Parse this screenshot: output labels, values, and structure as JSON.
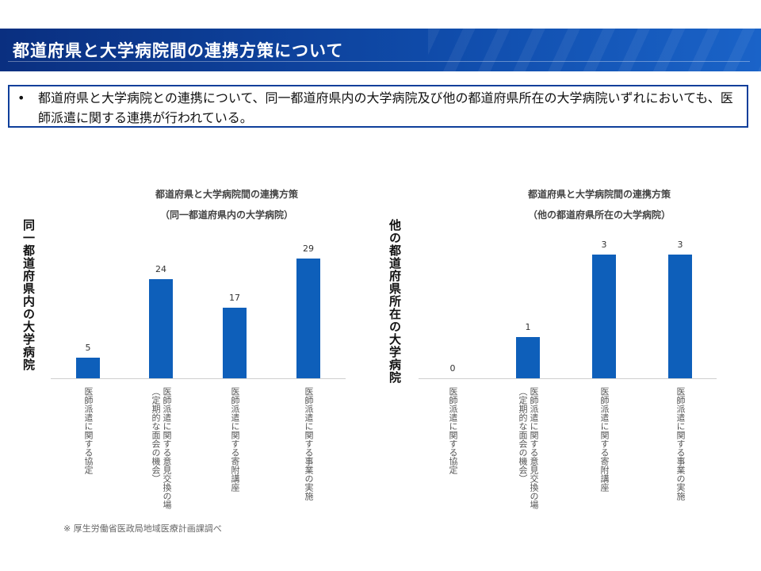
{
  "header": {
    "title": "都道府県と大学病院間の連携方策について"
  },
  "summary": {
    "bullet": "•",
    "text": "都道府県と大学病院との連携について、同一都道府県内の大学病院及び他の都道府県所在の大学病院いずれにおいても、医師派遣に関する連携が行われている。"
  },
  "chart_data": [
    {
      "type": "bar",
      "title": "都道府県と大学病院間の連携方策",
      "subtitle": "（同一都道府県内の大学病院）",
      "ylabel": "同一都道府県内の大学病院",
      "categories": [
        "医師派遣に関する協定",
        "医師派遣に関する意見交換の場（定期的な面会の機会）",
        "医師派遣に関する寄附講座",
        "医師派遣に関する事業の実施"
      ],
      "category_lines": [
        [
          "医師派遣に関する協定"
        ],
        [
          "医師派遣に関する意見交換の場",
          "（定期的な面会の機会）"
        ],
        [
          "医師派遣に関する寄附講座"
        ],
        [
          "医師派遣に関する事業の実施"
        ]
      ],
      "values": [
        5,
        24,
        17,
        29
      ],
      "ylim": [
        0,
        29
      ],
      "grid": false,
      "color": "#0e5fba"
    },
    {
      "type": "bar",
      "title": "都道府県と大学病院間の連携方策",
      "subtitle": "（他の都道府県所在の大学病院）",
      "ylabel": "他の都道府県所在の大学病院",
      "categories": [
        "医師派遣に関する協定",
        "医師派遣に関する意見交換の場（定期的な面会の機会）",
        "医師派遣に関する寄附講座",
        "医師派遣に関する事業の実施"
      ],
      "category_lines": [
        [
          "医師派遣に関する協定"
        ],
        [
          "医師派遣に関する意見交換の場",
          "（定期的な面会の機会）"
        ],
        [
          "医師派遣に関する寄附講座"
        ],
        [
          "医師派遣に関する事業の実施"
        ]
      ],
      "values": [
        0,
        1,
        3,
        3
      ],
      "ylim": [
        0,
        3
      ],
      "grid": false,
      "color": "#0e5fba"
    }
  ],
  "footnote": "※ 厚生労働省医政局地域医療計画課調べ"
}
